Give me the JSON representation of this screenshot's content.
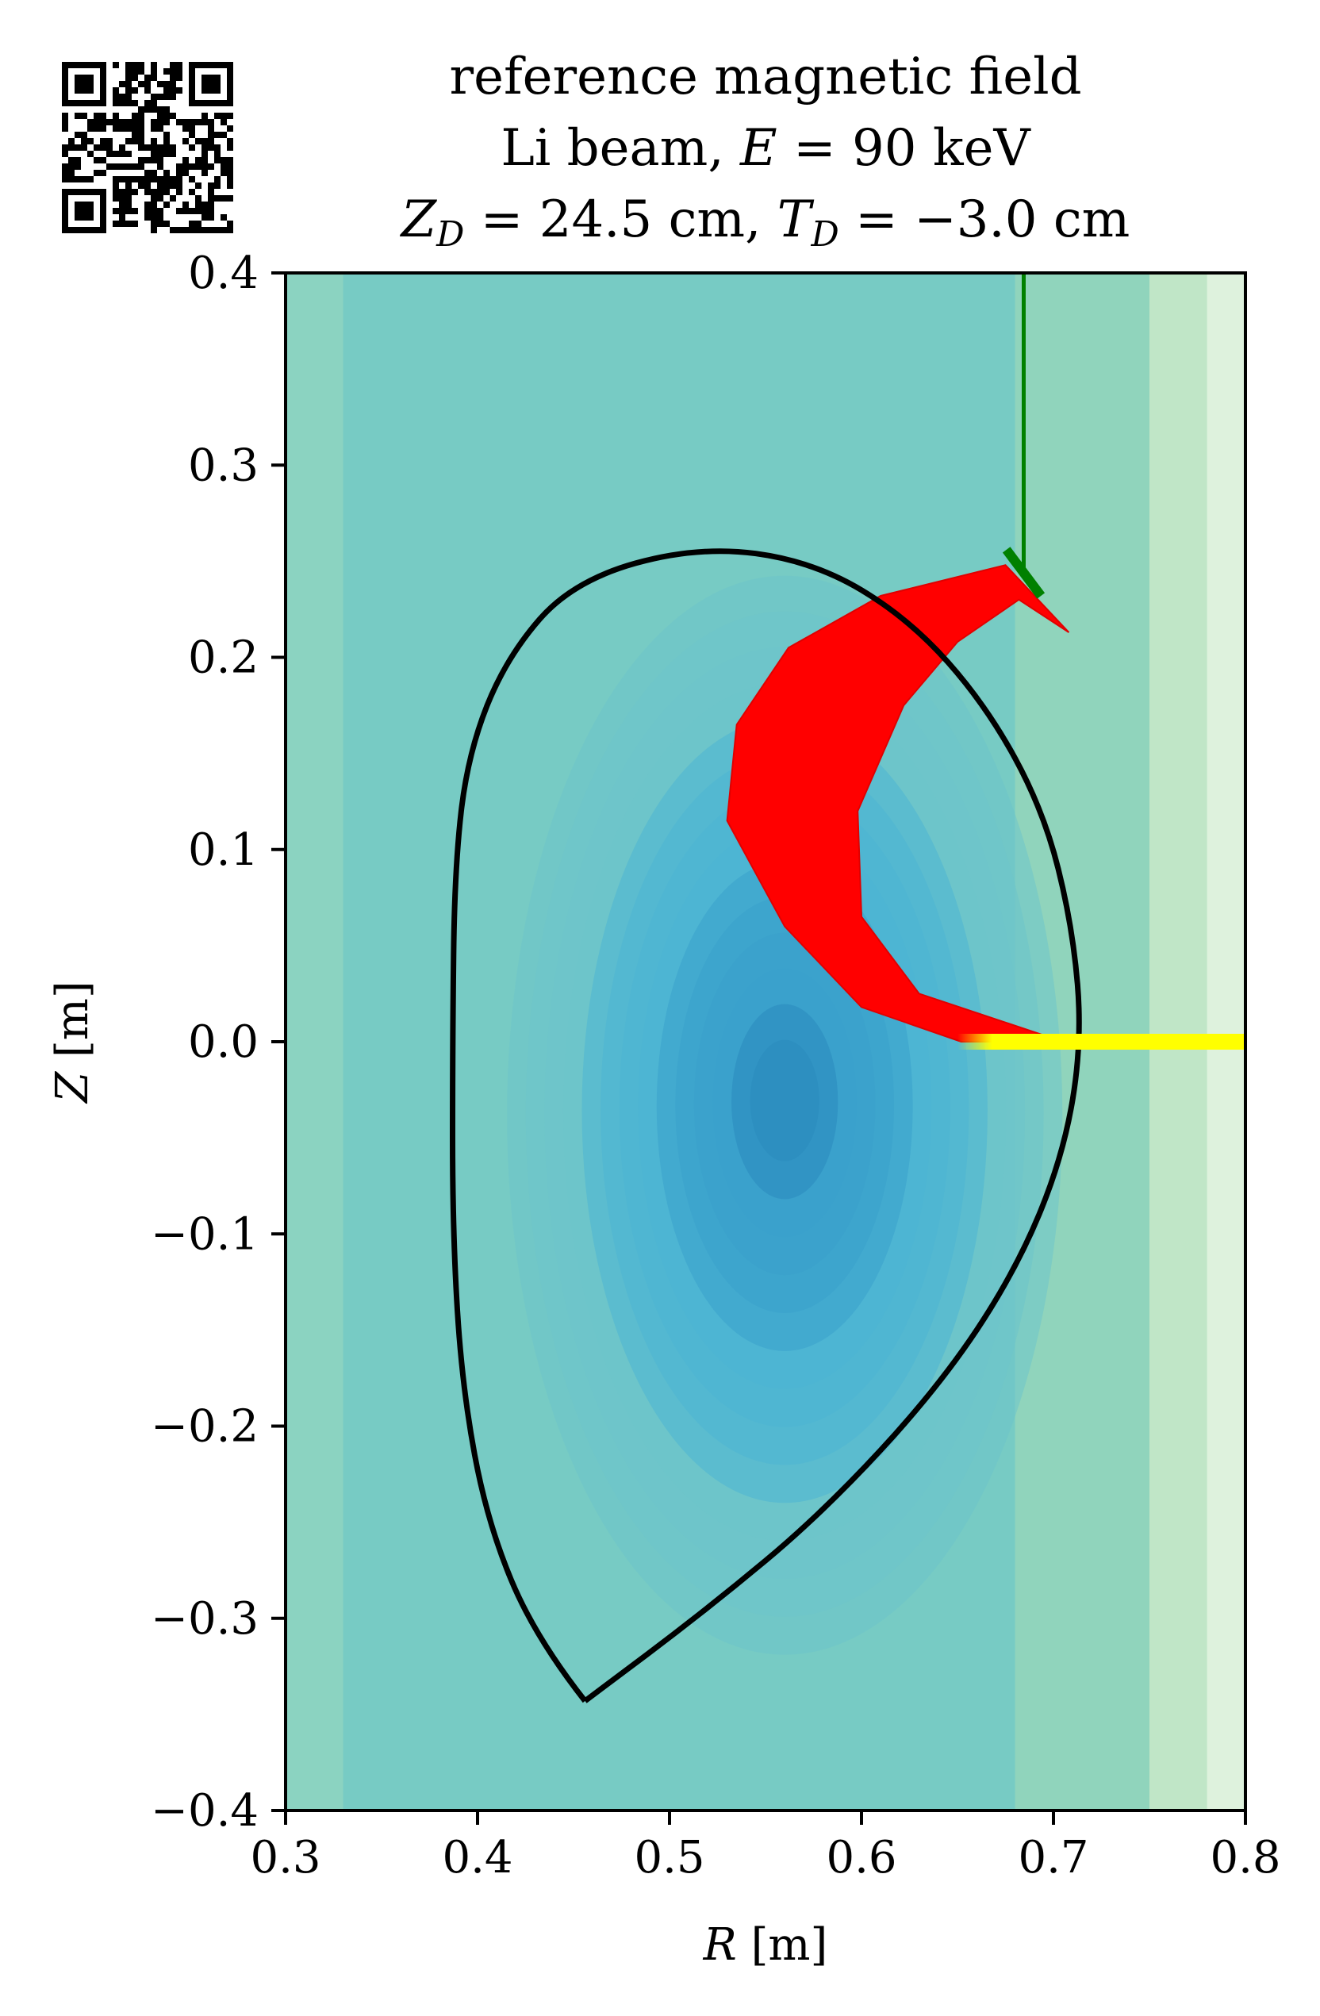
{
  "chart_data": {
    "type": "contour",
    "title_lines": [
      "reference magnetic field",
      "Li beam, E = 90 keV",
      "Z_D = 24.5 cm, T_D = −3.0 cm"
    ],
    "title_parts": {
      "line1": "reference magnetic field",
      "line2_prefix": "Li beam, ",
      "line2_var": "E",
      "line2_eq": " = 90 keV",
      "line3_var1": "Z",
      "line3_sub1": "D",
      "line3_mid": " = 24.5 cm, ",
      "line3_var2": "T",
      "line3_sub2": "D",
      "line3_end": " = −3.0 cm"
    },
    "xlabel_var": "R",
    "xlabel_unit": " [m]",
    "ylabel_var": "Z",
    "ylabel_unit": " [m]",
    "xlim": [
      0.3,
      0.8
    ],
    "ylim": [
      -0.4,
      0.4
    ],
    "xticks": [
      0.3,
      0.4,
      0.5,
      0.6,
      0.7,
      0.8
    ],
    "xtick_labels": [
      "0.3",
      "0.4",
      "0.5",
      "0.6",
      "0.7",
      "0.8"
    ],
    "yticks": [
      0.4,
      0.3,
      0.2,
      0.1,
      0.0,
      -0.1,
      -0.2,
      -0.3,
      -0.4
    ],
    "ytick_labels": [
      "0.4",
      "0.3",
      "0.2",
      "0.1",
      "0.0",
      "−0.1",
      "−0.2",
      "−0.3",
      "−0.4"
    ],
    "contour_center": [
      0.56,
      -0.03
    ],
    "colormap": [
      "#2a8abe",
      "#3aa0cc",
      "#4db4d4",
      "#6ec4cb",
      "#8dd3c0",
      "#acdeb5",
      "#c8e9c2",
      "#e8f6e4"
    ],
    "separatrix": [
      [
        0.456,
        -0.343
      ],
      [
        0.43,
        -0.31
      ],
      [
        0.405,
        -0.25
      ],
      [
        0.392,
        -0.18
      ],
      [
        0.387,
        -0.1
      ],
      [
        0.387,
        0.0
      ],
      [
        0.388,
        0.09
      ],
      [
        0.395,
        0.15
      ],
      [
        0.415,
        0.2
      ],
      [
        0.45,
        0.24
      ],
      [
        0.515,
        0.258
      ],
      [
        0.575,
        0.25
      ],
      [
        0.625,
        0.22
      ],
      [
        0.665,
        0.175
      ],
      [
        0.695,
        0.12
      ],
      [
        0.71,
        0.06
      ],
      [
        0.715,
        0.0
      ],
      [
        0.705,
        -0.06
      ],
      [
        0.68,
        -0.12
      ],
      [
        0.64,
        -0.18
      ],
      [
        0.58,
        -0.245
      ],
      [
        0.52,
        -0.295
      ],
      [
        0.456,
        -0.343
      ]
    ],
    "separatrix_color": "#000000",
    "beam": {
      "x_start": 0.65,
      "x_end": 0.8,
      "z": 0.0,
      "color": "#ffff00"
    },
    "trajectory_fan": {
      "outer_edge": [
        [
          0.652,
          0.0
        ],
        [
          0.6,
          0.018
        ],
        [
          0.56,
          0.06
        ],
        [
          0.53,
          0.115
        ],
        [
          0.535,
          0.165
        ],
        [
          0.562,
          0.205
        ],
        [
          0.61,
          0.232
        ],
        [
          0.675,
          0.248
        ]
      ],
      "tip": [
        0.708,
        0.213
      ],
      "inner_edge": [
        [
          0.682,
          0.23
        ],
        [
          0.65,
          0.208
        ],
        [
          0.622,
          0.175
        ],
        [
          0.598,
          0.12
        ],
        [
          0.6,
          0.065
        ],
        [
          0.63,
          0.025
        ],
        [
          0.705,
          0.0
        ]
      ],
      "color": "#ff0000"
    },
    "detector_line": {
      "x": 0.6845,
      "z_from": 0.245,
      "z_to": 0.4,
      "color": "#008000"
    },
    "detector_plate": {
      "from": [
        0.6755,
        0.256
      ],
      "to": [
        0.6935,
        0.232
      ],
      "color": "#008000"
    }
  }
}
